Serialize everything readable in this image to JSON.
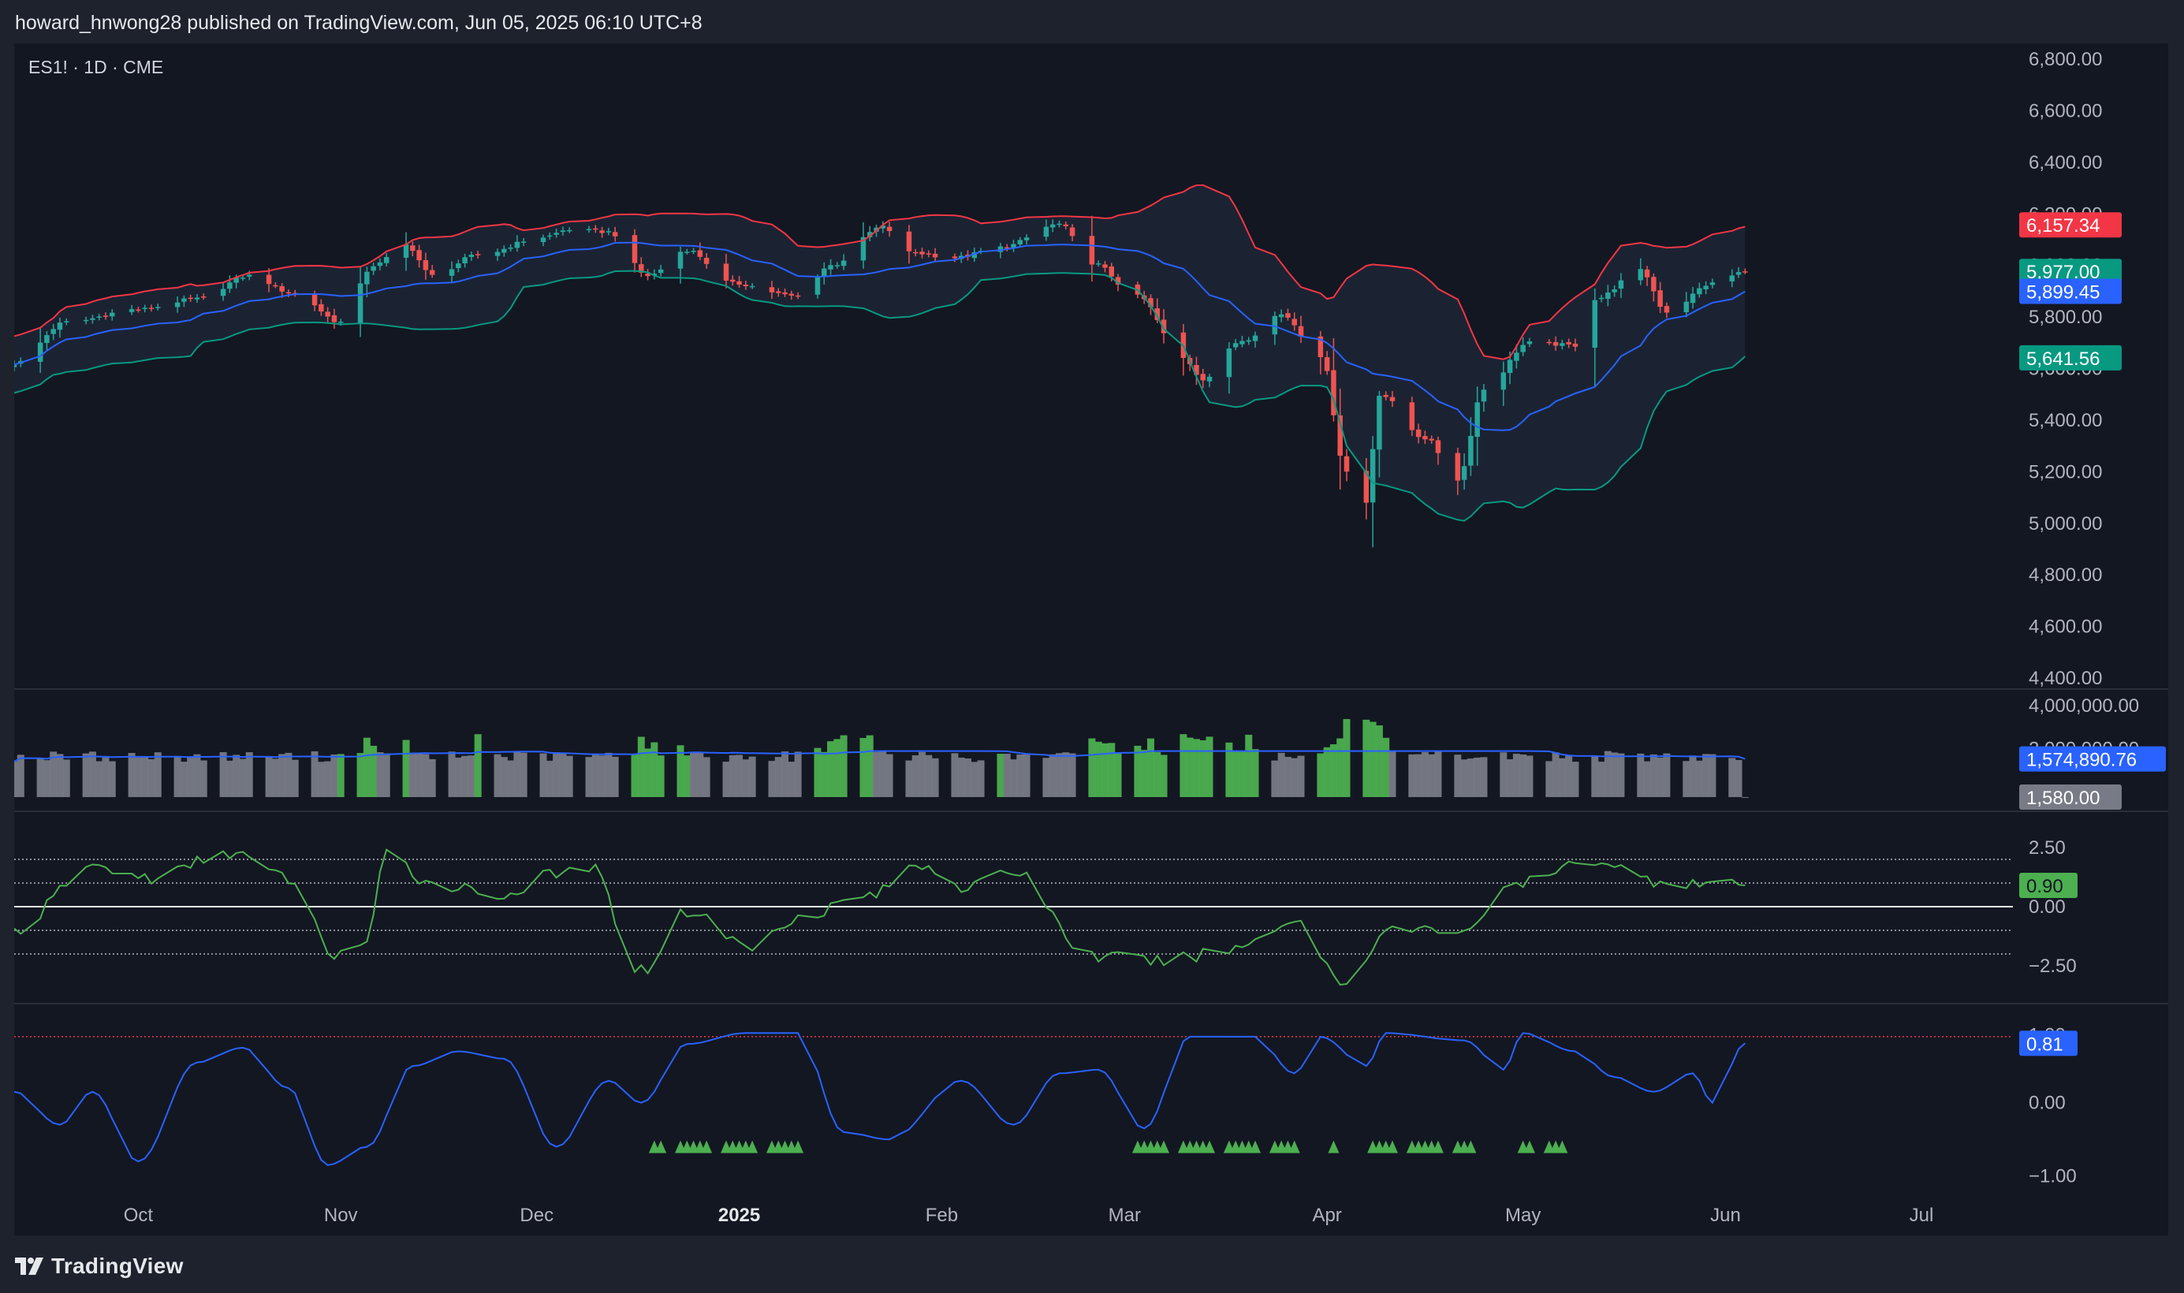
{
  "header": {
    "published_line": "howard_hnwong28 published on TradingView.com, Jun 05, 2025 06:10 UTC+8",
    "symbol_line": "ES1! · 1D · CME"
  },
  "footer": {
    "brand": "TradingView"
  },
  "colors": {
    "background": "#131722",
    "frame": "#1e222d",
    "up_candle": "#26a69a",
    "down_candle": "#ef5350",
    "upper_band": "#f23645",
    "middle_band": "#2962ff",
    "lower_band": "#089981",
    "band_fill": "#1b2333",
    "volume_green": "#4caf50",
    "volume_gray": "#787b86",
    "osc_line": "#4caf50",
    "blue_osc": "#2962ff",
    "signal_marker": "#4caf50",
    "axis_text": "#b2b5be"
  },
  "chart_data": [
    {
      "type": "candlestick",
      "title": "ES1! · 1D · CME",
      "indicator": "Bollinger Bands",
      "x_range": [
        "2024-09-12",
        "2025-07-15"
      ],
      "ylim": [
        4400,
        6800
      ],
      "y_ticks": [
        "4,400.00",
        "4,600.00",
        "4,800.00",
        "5,000.00",
        "5,200.00",
        "5,400.00",
        "5,600.00",
        "5,800.00",
        "6,000.00",
        "6,200.00",
        "6,400.00",
        "6,600.00",
        "6,800.00"
      ],
      "y_tick_values": [
        4400,
        4600,
        4800,
        5000,
        5200,
        5400,
        5600,
        5800,
        6000,
        6200,
        6400,
        6600,
        6800
      ],
      "x_tick_labels": [
        {
          "label": "Oct",
          "date": "2024-10-01"
        },
        {
          "label": "Nov",
          "date": "2024-11-01"
        },
        {
          "label": "Dec",
          "date": "2024-12-01"
        },
        {
          "label": "2025",
          "date": "2025-01-01"
        },
        {
          "label": "Feb",
          "date": "2025-02-01"
        },
        {
          "label": "Mar",
          "date": "2025-03-01"
        },
        {
          "label": "Apr",
          "date": "2025-04-01"
        },
        {
          "label": "May",
          "date": "2025-05-01"
        },
        {
          "label": "Jun",
          "date": "2025-06-01"
        },
        {
          "label": "Jul",
          "date": "2025-07-01"
        }
      ],
      "close_keyframes": [
        [
          "2024-09-12",
          5620
        ],
        [
          "2024-09-20",
          5780
        ],
        [
          "2024-10-01",
          5830
        ],
        [
          "2024-10-10",
          5870
        ],
        [
          "2024-10-18",
          5960
        ],
        [
          "2024-10-25",
          5890
        ],
        [
          "2024-11-01",
          5780
        ],
        [
          "2024-11-06",
          6000
        ],
        [
          "2024-11-11",
          6080
        ],
        [
          "2024-11-15",
          5960
        ],
        [
          "2024-11-22",
          6040
        ],
        [
          "2024-12-02",
          6110
        ],
        [
          "2024-12-06",
          6140
        ],
        [
          "2024-12-12",
          6130
        ],
        [
          "2024-12-18",
          5960
        ],
        [
          "2024-12-24",
          6060
        ],
        [
          "2024-12-31",
          5930
        ],
        [
          "2025-01-10",
          5880
        ],
        [
          "2025-01-15",
          6000
        ],
        [
          "2025-01-23",
          6150
        ],
        [
          "2025-01-27",
          6050
        ],
        [
          "2025-02-03",
          6030
        ],
        [
          "2025-02-10",
          6070
        ],
        [
          "2025-02-19",
          6160
        ],
        [
          "2025-02-24",
          6010
        ],
        [
          "2025-03-03",
          5880
        ],
        [
          "2025-03-10",
          5640
        ],
        [
          "2025-03-13",
          5560
        ],
        [
          "2025-03-19",
          5710
        ],
        [
          "2025-03-25",
          5810
        ],
        [
          "2025-03-31",
          5650
        ],
        [
          "2025-04-04",
          5200
        ],
        [
          "2025-04-07",
          5080
        ],
        [
          "2025-04-09",
          5500
        ],
        [
          "2025-04-16",
          5330
        ],
        [
          "2025-04-21",
          5170
        ],
        [
          "2025-04-25",
          5520
        ],
        [
          "2025-05-02",
          5700
        ],
        [
          "2025-05-09",
          5690
        ],
        [
          "2025-05-12",
          5870
        ],
        [
          "2025-05-19",
          5980
        ],
        [
          "2025-05-23",
          5820
        ],
        [
          "2025-05-30",
          5930
        ],
        [
          "2025-06-04",
          5977
        ]
      ],
      "last_close": 5977.0,
      "bands": {
        "upper": 6157.34,
        "middle": 5899.45,
        "lower": 5641.56
      },
      "value_labels": {
        "upper": "6,157.34",
        "close": "5,977.00",
        "middle": "5,899.45",
        "lower": "5,641.56"
      }
    },
    {
      "type": "bar",
      "title": "Volume",
      "ylim": [
        0,
        4000000
      ],
      "y_ticks": [
        "4,000,000.00",
        "2,000,000.00"
      ],
      "y_tick_values": [
        4000000,
        2000000
      ],
      "average_label": "1,574,890.76",
      "last_value_label": "1,580.00",
      "green_ranges": [
        [
          "2024-11-01",
          "2024-11-06"
        ],
        [
          "2024-11-11",
          "2024-11-11"
        ],
        [
          "2024-11-22",
          "2024-11-22"
        ],
        [
          "2024-12-16",
          "2024-12-24"
        ],
        [
          "2025-01-13",
          "2025-01-21"
        ],
        [
          "2025-02-10",
          "2025-02-10"
        ],
        [
          "2025-02-24",
          "2025-03-21"
        ],
        [
          "2025-03-31",
          "2025-04-10"
        ]
      ]
    },
    {
      "type": "line",
      "title": "Oscillator",
      "ylim": [
        -3.5,
        3.5
      ],
      "y_ticks": [
        "2.50",
        "0.00",
        "−2.50"
      ],
      "y_tick_values": [
        2.5,
        0,
        -2.5
      ],
      "reference_lines": [
        2.0,
        1.0,
        -1.0,
        -2.0
      ],
      "value_label": "0.90",
      "keyframes": [
        [
          "2024-09-12",
          -1.0
        ],
        [
          "2024-09-24",
          1.7
        ],
        [
          "2024-10-03",
          1.2
        ],
        [
          "2024-10-15",
          2.3
        ],
        [
          "2024-10-24",
          1.2
        ],
        [
          "2024-10-31",
          -2.0
        ],
        [
          "2024-11-05",
          -1.5
        ],
        [
          "2024-11-08",
          2.2
        ],
        [
          "2024-11-15",
          1.0
        ],
        [
          "2024-11-26",
          0.5
        ],
        [
          "2024-12-03",
          1.3
        ],
        [
          "2024-12-09",
          1.7
        ],
        [
          "2024-12-17",
          -2.7
        ],
        [
          "2024-12-24",
          -0.2
        ],
        [
          "2025-01-03",
          -1.7
        ],
        [
          "2025-01-10",
          -0.4
        ],
        [
          "2025-01-21",
          0.5
        ],
        [
          "2025-01-29",
          1.8
        ],
        [
          "2025-02-05",
          0.8
        ],
        [
          "2025-02-12",
          1.5
        ],
        [
          "2025-02-24",
          -2.1
        ],
        [
          "2025-03-07",
          -2.3
        ],
        [
          "2025-03-17",
          -1.8
        ],
        [
          "2025-03-27",
          -0.6
        ],
        [
          "2025-04-04",
          -3.3
        ],
        [
          "2025-04-10",
          -1.0
        ],
        [
          "2025-04-21",
          -1.0
        ],
        [
          "2025-05-01",
          1.0
        ],
        [
          "2025-05-12",
          2.0
        ],
        [
          "2025-05-21",
          1.1
        ],
        [
          "2025-06-04",
          0.9
        ]
      ]
    },
    {
      "type": "line",
      "title": "Blue oscillator",
      "ylim": [
        -1.25,
        1.2
      ],
      "y_ticks": [
        "1.00",
        "0.00",
        "−1.00"
      ],
      "y_tick_values": [
        1.0,
        0,
        -1.0
      ],
      "reference_line": 0.9,
      "value_label": "0.81",
      "keyframes": [
        [
          "2024-09-12",
          0.15
        ],
        [
          "2024-09-19",
          -0.3
        ],
        [
          "2024-09-24",
          0.15
        ],
        [
          "2024-10-01",
          -0.8
        ],
        [
          "2024-10-10",
          0.55
        ],
        [
          "2024-10-17",
          0.75
        ],
        [
          "2024-10-24",
          0.2
        ],
        [
          "2024-10-30",
          -0.85
        ],
        [
          "2024-11-05",
          -0.6
        ],
        [
          "2024-11-12",
          0.5
        ],
        [
          "2024-11-19",
          0.7
        ],
        [
          "2024-11-26",
          0.6
        ],
        [
          "2024-12-04",
          -0.6
        ],
        [
          "2024-12-12",
          0.3
        ],
        [
          "2024-12-17",
          0.0
        ],
        [
          "2024-12-24",
          0.8
        ],
        [
          "2025-01-02",
          0.95
        ],
        [
          "2025-01-10",
          0.95
        ],
        [
          "2025-01-17",
          -0.4
        ],
        [
          "2025-01-24",
          -0.5
        ],
        [
          "2025-02-04",
          0.3
        ],
        [
          "2025-02-12",
          -0.3
        ],
        [
          "2025-02-19",
          0.4
        ],
        [
          "2025-02-25",
          0.45
        ],
        [
          "2025-03-04",
          -0.35
        ],
        [
          "2025-03-11",
          0.9
        ],
        [
          "2025-03-21",
          0.9
        ],
        [
          "2025-03-27",
          0.4
        ],
        [
          "2025-03-31",
          0.9
        ],
        [
          "2025-04-07",
          0.5
        ],
        [
          "2025-04-10",
          0.95
        ],
        [
          "2025-04-22",
          0.85
        ],
        [
          "2025-04-28",
          0.45
        ],
        [
          "2025-05-01",
          0.95
        ],
        [
          "2025-05-09",
          0.7
        ],
        [
          "2025-05-15",
          0.35
        ],
        [
          "2025-05-21",
          0.15
        ],
        [
          "2025-05-27",
          0.4
        ],
        [
          "2025-05-30",
          0.0
        ],
        [
          "2025-06-04",
          0.81
        ]
      ],
      "signal_ranges": [
        [
          "2024-12-19",
          "2025-01-10"
        ],
        [
          "2025-03-03",
          "2025-03-27"
        ],
        [
          "2025-04-02",
          "2025-04-02"
        ],
        [
          "2025-04-08",
          "2025-04-23"
        ],
        [
          "2025-05-01",
          "2025-05-07"
        ]
      ]
    }
  ]
}
